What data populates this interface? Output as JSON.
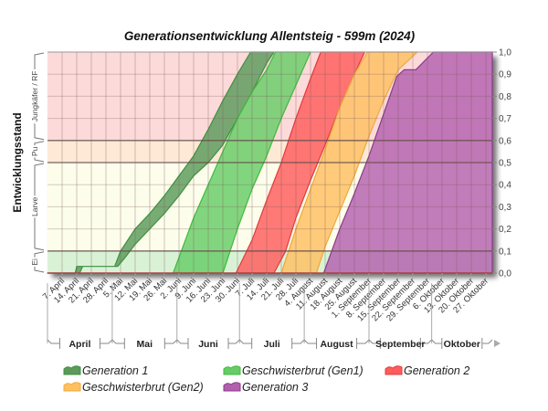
{
  "chart_data": {
    "type": "area",
    "title": "Generationsentwicklung Allentsteig - 599m (2024)",
    "ylabel": "Entwicklungsstand",
    "xlabel": "",
    "ylim": [
      0.0,
      1.0
    ],
    "grid": true,
    "legend_position": "bottom",
    "y_ticks": [
      "0,0",
      "0,1",
      "0,2",
      "0,3",
      "0,4",
      "0,5",
      "0,6",
      "0,7",
      "0,8",
      "0,9",
      "1,0"
    ],
    "x_ticks": [
      "7. April",
      "14. April",
      "21. April",
      "28. April",
      "5. Mai",
      "12. Mai",
      "19. Mai",
      "26. Mai",
      "2. Juni",
      "9. Juni",
      "16. Juni",
      "23. Juni",
      "30. Juni",
      "7. Juli",
      "14. Juli",
      "21. Juli",
      "28. Juli",
      "4. August",
      "11. August",
      "18. August",
      "25. August",
      "1. September",
      "8. September",
      "15. September",
      "22. September",
      "29. September",
      "6. Oktober",
      "13. Oktober",
      "20. Oktober",
      "27. Oktober"
    ],
    "x_unit_note": "x values are weeks after 7. April",
    "months": [
      {
        "label": "April",
        "start_week": -1,
        "end_week": 3.43
      },
      {
        "label": "Mai",
        "start_week": 3.43,
        "end_week": 7.86
      },
      {
        "label": "Juni",
        "start_week": 7.86,
        "end_week": 12.14
      },
      {
        "label": "Juli",
        "start_week": 12.14,
        "end_week": 16.57
      },
      {
        "label": "August",
        "start_week": 16.57,
        "end_week": 21.0
      },
      {
        "label": "September",
        "start_week": 21.0,
        "end_week": 25.29
      },
      {
        "label": "Oktober",
        "start_week": 25.29,
        "end_week": 30.0
      }
    ],
    "stages": [
      {
        "label": "Ei",
        "from": 0.0,
        "to": 0.1,
        "color": "#d9f2d6"
      },
      {
        "label": "Larve",
        "from": 0.1,
        "to": 0.5,
        "color": "#fdfdeb"
      },
      {
        "label": "Pu",
        "from": 0.5,
        "to": 0.6,
        "color": "#fde9d6"
      },
      {
        "label": "Jungkäfer / RF",
        "from": 0.6,
        "to": 1.0,
        "color": "#fcdada"
      }
    ],
    "series": [
      {
        "name": "Generation 1",
        "color": "#3f8f3f",
        "fill": "#5a9a5a",
        "upper": [
          [
            -1,
            0
          ],
          [
            0.9,
            0
          ],
          [
            1.0,
            0.03
          ],
          [
            3.6,
            0.03
          ],
          [
            4,
            0.1
          ],
          [
            5,
            0.2
          ],
          [
            6,
            0.27
          ],
          [
            7,
            0.35
          ],
          [
            8,
            0.44
          ],
          [
            9,
            0.53
          ],
          [
            10,
            0.65
          ],
          [
            11,
            0.78
          ],
          [
            12,
            0.9
          ],
          [
            12.9,
            1.0
          ]
        ],
        "lower": [
          [
            -1,
            0
          ],
          [
            1.2,
            0
          ],
          [
            1.4,
            0.03
          ],
          [
            3.8,
            0.03
          ],
          [
            4.3,
            0.07
          ],
          [
            5,
            0.13
          ],
          [
            6,
            0.2
          ],
          [
            7,
            0.27
          ],
          [
            8,
            0.35
          ],
          [
            9,
            0.44
          ],
          [
            10,
            0.5
          ],
          [
            11,
            0.58
          ],
          [
            12,
            0.7
          ],
          [
            13,
            0.82
          ],
          [
            14,
            0.95
          ],
          [
            14.5,
            1.0
          ]
        ]
      },
      {
        "name": "Geschwisterbrut (Gen1)",
        "color": "#3dbb3d",
        "fill": "#66cc66",
        "upper": [
          [
            7.6,
            0
          ],
          [
            9,
            0.25
          ],
          [
            10,
            0.4
          ],
          [
            11,
            0.55
          ],
          [
            12,
            0.7
          ],
          [
            13,
            0.82
          ],
          [
            14,
            0.92
          ],
          [
            14.6,
            1.0
          ]
        ],
        "lower": [
          [
            11,
            0
          ],
          [
            11.5,
            0.1
          ],
          [
            12,
            0.2
          ],
          [
            13,
            0.38
          ],
          [
            14,
            0.53
          ],
          [
            15,
            0.7
          ],
          [
            16,
            0.85
          ],
          [
            17,
            1.0
          ]
        ]
      },
      {
        "name": "Generation 2",
        "color": "#e23b3b",
        "fill": "#ff5c5c",
        "upper": [
          [
            11.9,
            0
          ],
          [
            13,
            0.15
          ],
          [
            14,
            0.33
          ],
          [
            15,
            0.5
          ],
          [
            16,
            0.7
          ],
          [
            17,
            0.88
          ],
          [
            17.7,
            1.0
          ]
        ],
        "lower": [
          [
            14.5,
            0
          ],
          [
            15.3,
            0.1
          ],
          [
            16,
            0.25
          ],
          [
            17,
            0.42
          ],
          [
            18,
            0.58
          ],
          [
            19,
            0.75
          ],
          [
            20,
            0.9
          ],
          [
            20.7,
            1.0
          ]
        ]
      },
      {
        "name": "Geschwisterbrut (Gen2)",
        "color": "#f0a83c",
        "fill": "#ffc060",
        "upper": [
          [
            15,
            0
          ],
          [
            16,
            0.2
          ],
          [
            17,
            0.38
          ],
          [
            18,
            0.56
          ],
          [
            19,
            0.75
          ],
          [
            20,
            0.9
          ],
          [
            20.9,
            1.0
          ]
        ],
        "lower": [
          [
            17.4,
            0
          ],
          [
            18,
            0.12
          ],
          [
            19,
            0.28
          ],
          [
            20,
            0.44
          ],
          [
            21,
            0.62
          ],
          [
            22,
            0.78
          ],
          [
            23,
            0.92
          ],
          [
            24.3,
            1.0
          ]
        ]
      },
      {
        "name": "Generation 3",
        "color": "#8a3a8a",
        "fill": "#b35fae",
        "upper": [
          [
            17.9,
            0
          ],
          [
            19,
            0.2
          ],
          [
            20,
            0.36
          ],
          [
            21,
            0.53
          ],
          [
            22,
            0.72
          ],
          [
            22.9,
            0.89
          ],
          [
            23.4,
            0.92
          ],
          [
            24.2,
            0.92
          ],
          [
            25.4,
            1.0
          ],
          [
            30.3,
            1.0
          ]
        ],
        "lower": [
          [
            17.9,
            0
          ],
          [
            30.3,
            0
          ]
        ]
      }
    ]
  }
}
